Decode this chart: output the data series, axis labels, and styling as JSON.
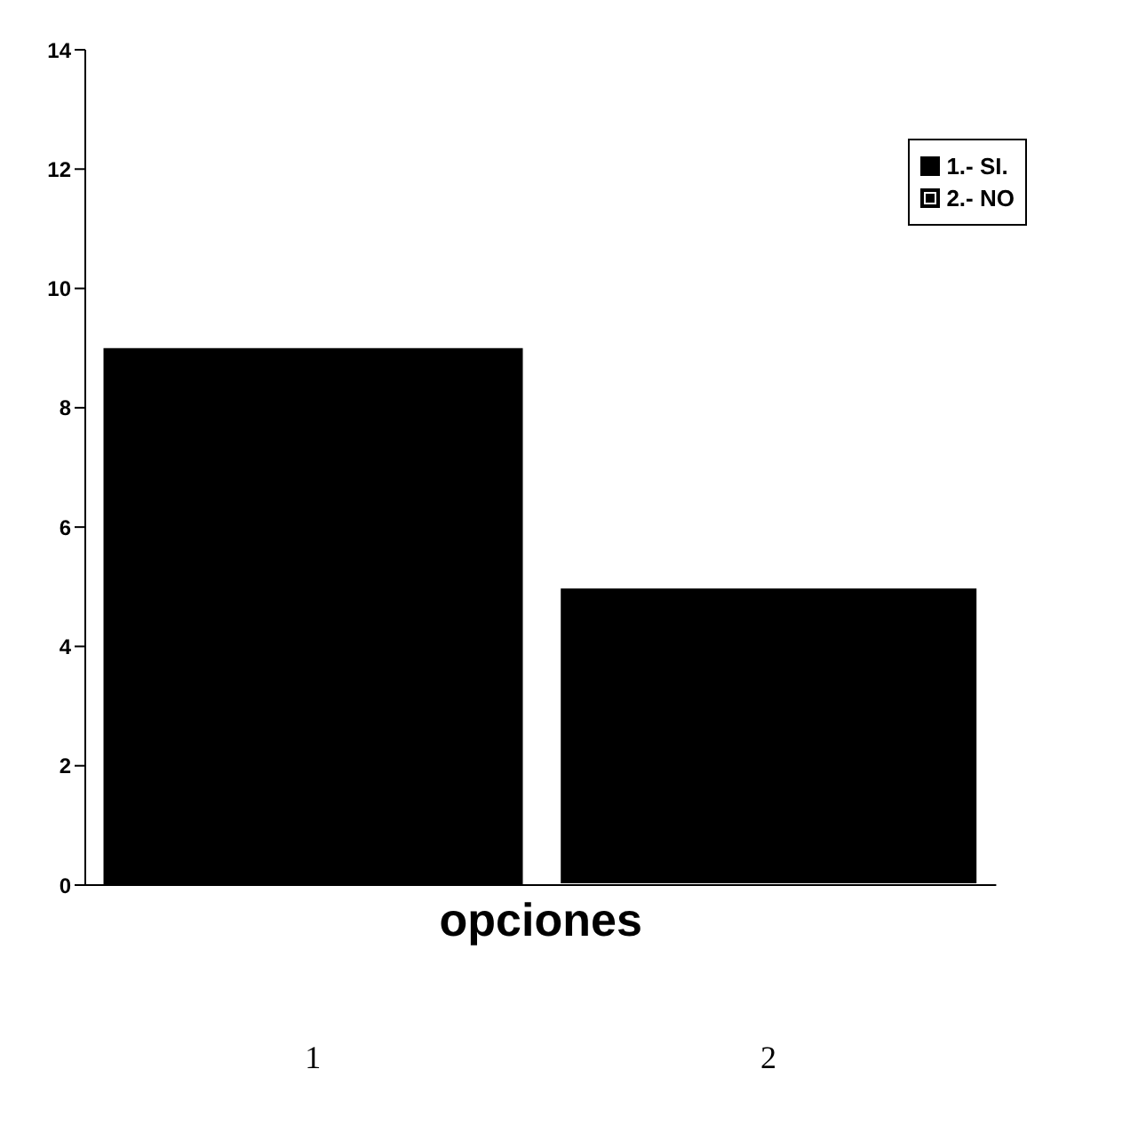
{
  "chart_data": {
    "type": "bar",
    "xlabel": "opciones",
    "categories": [
      "1",
      "2"
    ],
    "stacked": true,
    "series": [
      {
        "name": "1.- SI.",
        "color": "#000000",
        "values": [
          9,
          null
        ]
      },
      {
        "name": "2.- NO",
        "color": "#000000",
        "values": [
          null,
          5
        ]
      }
    ],
    "ylim": [
      0,
      14
    ],
    "yticks": [
      0,
      2,
      4,
      6,
      8,
      10,
      12,
      14
    ],
    "grid": false,
    "legend": "top right"
  }
}
